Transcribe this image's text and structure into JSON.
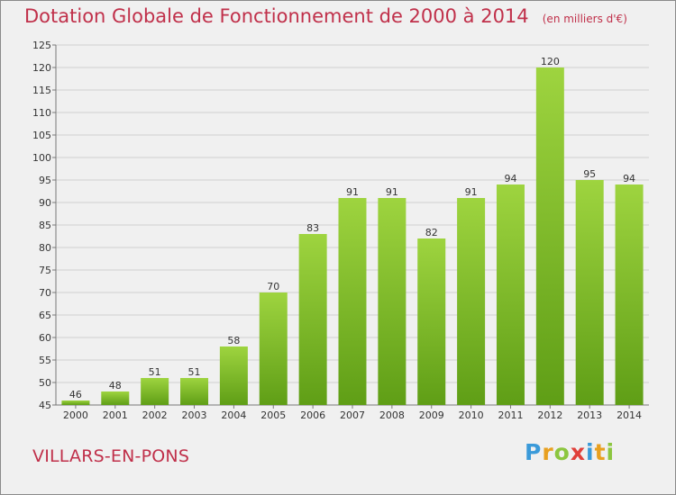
{
  "title": "Dotation Globale de Fonctionnement de 2000 à 2014",
  "unit": "(en milliers d'€)",
  "commune": "VILLARS-EN-PONS",
  "logo": {
    "text": "Proxiti",
    "letters": [
      {
        "char": "P",
        "color": "#3a9ad9"
      },
      {
        "char": "r",
        "color": "#e8a020"
      },
      {
        "char": "o",
        "color": "#8cc63f"
      },
      {
        "char": "x",
        "color": "#e0403a"
      },
      {
        "char": "i",
        "color": "#3a9ad9"
      },
      {
        "char": "t",
        "color": "#e8a020"
      },
      {
        "char": "i",
        "color": "#8cc63f"
      }
    ]
  },
  "colors": {
    "bar_light": "#9ed43f",
    "bar_dark": "#5f9e16",
    "title": "#c0304a",
    "grid": "#d0d0d0",
    "background": "#f0f0f0"
  },
  "chart_data": {
    "type": "bar",
    "categories": [
      "2000",
      "2001",
      "2002",
      "2003",
      "2004",
      "2005",
      "2006",
      "2007",
      "2008",
      "2009",
      "2010",
      "2011",
      "2012",
      "2013",
      "2014"
    ],
    "values": [
      46,
      48,
      51,
      51,
      58,
      70,
      83,
      91,
      91,
      82,
      91,
      94,
      120,
      95,
      94
    ],
    "data_labels": [
      "46",
      "48",
      "51",
      "51",
      "58",
      "70",
      "83",
      "91",
      "91",
      "82",
      "91",
      "94",
      "120",
      "95",
      "94"
    ],
    "ylim": [
      45,
      125
    ],
    "yticks": [
      45,
      50,
      55,
      60,
      65,
      70,
      75,
      80,
      85,
      90,
      95,
      100,
      105,
      110,
      115,
      120,
      125
    ],
    "grid": true,
    "xlabel": "",
    "ylabel": ""
  }
}
